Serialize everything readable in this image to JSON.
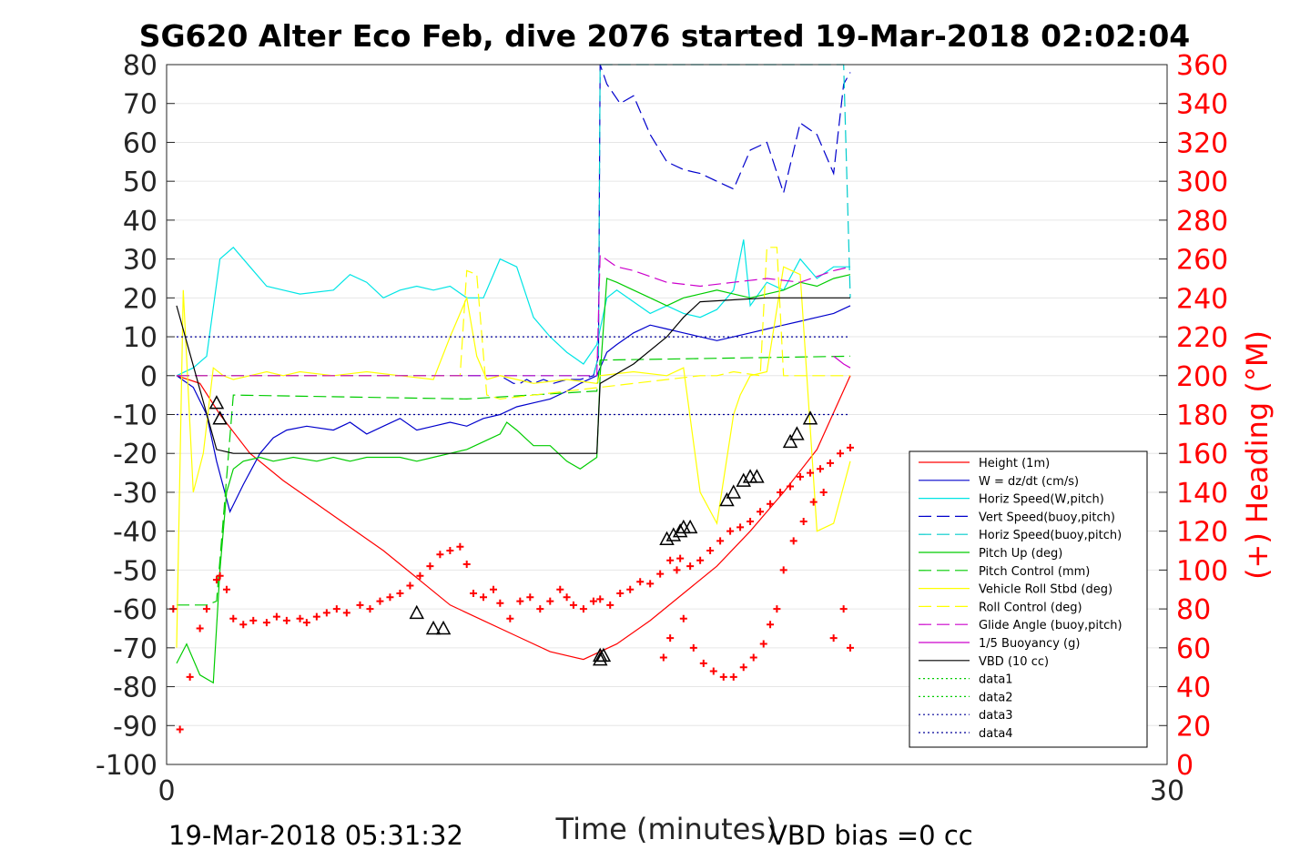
{
  "chart_data": {
    "type": "line",
    "title": "SG620 Alter Eco Feb, dive 2076 started 19-Mar-2018 02:02:04",
    "xlabel": "Time (minutes)",
    "ylabel_right": "(+) Heading (°M)",
    "xlim": [
      0,
      30
    ],
    "ylim_left": [
      -100,
      80
    ],
    "ylim_right": [
      0,
      360
    ],
    "x_ticks": [
      "0",
      "30"
    ],
    "y_ticks_left": [
      "80",
      "70",
      "60",
      "50",
      "40",
      "30",
      "20",
      "10",
      "0",
      "-10",
      "-20",
      "-30",
      "-40",
      "-50",
      "-60",
      "-70",
      "-80",
      "-90",
      "-100"
    ],
    "y_ticks_right": [
      "360",
      "340",
      "320",
      "300",
      "280",
      "260",
      "240",
      "220",
      "200",
      "180",
      "160",
      "140",
      "120",
      "100",
      "80",
      "60",
      "40",
      "20",
      "0"
    ],
    "grid": true,
    "legend_position": "bottom-right",
    "footer_left": "19-Mar-2018 05:31:32",
    "footer_right": "VBD bias =0 cc",
    "colors": {
      "heading": "#ff0000",
      "axis": "#262626",
      "grid": "#e6e6e6"
    },
    "series": [
      {
        "name": "Height (1m)",
        "color": "#ff0000",
        "style": "solid",
        "x": [
          0.3,
          1.0,
          1.6,
          2.5,
          3.5,
          4.5,
          5.5,
          6.5,
          7.5,
          8.5,
          9.5,
          10.5,
          11.5,
          12.5,
          13.5,
          14.5,
          15.5,
          16.5,
          17.5,
          18.5,
          19.5,
          20.5
        ],
        "y": [
          0,
          -2,
          -10,
          -20,
          -27,
          -33,
          -39,
          -45,
          -52,
          -59,
          -63,
          -67,
          -71,
          -73,
          -69,
          -63,
          -56,
          -49,
          -40,
          -30,
          -19,
          0
        ]
      },
      {
        "name": "W = dz/dt (cm/s)",
        "color": "#0000cc",
        "style": "solid",
        "x": [
          0.3,
          0.8,
          1.2,
          1.5,
          1.9,
          2.3,
          2.8,
          3.2,
          3.6,
          4.2,
          5.0,
          5.5,
          6.0,
          6.5,
          7.0,
          7.5,
          8.0,
          8.5,
          9.0,
          9.5,
          10.0,
          10.5,
          11.0,
          11.5,
          12.0,
          12.4,
          12.9,
          13.2,
          13.5,
          14.0,
          14.5,
          15.0,
          15.5,
          16.0,
          16.5,
          17.0,
          17.5,
          18.0,
          18.5,
          19.0,
          19.5,
          20.0,
          20.5
        ],
        "y": [
          0,
          -3,
          -10,
          -22,
          -35,
          -28,
          -20,
          -16,
          -14,
          -13,
          -14,
          -12,
          -15,
          -13,
          -11,
          -14,
          -13,
          -12,
          -13,
          -11,
          -10,
          -8,
          -7,
          -6,
          -4,
          -2,
          0,
          6,
          8,
          11,
          13,
          12,
          11,
          10,
          9,
          10,
          11,
          12,
          13,
          14,
          15,
          16,
          18
        ]
      },
      {
        "name": "Horiz Speed(W,pitch)",
        "color": "#00e5e5",
        "style": "solid",
        "x": [
          0.3,
          0.8,
          1.2,
          1.6,
          2.0,
          2.5,
          3.0,
          3.5,
          4.0,
          5.0,
          5.5,
          6.0,
          6.5,
          7.0,
          7.5,
          8.0,
          8.5,
          9.0,
          9.5,
          10.0,
          10.5,
          11.0,
          11.5,
          12.0,
          12.5,
          12.9,
          13.2,
          13.5,
          14.0,
          14.5,
          15.0,
          15.5,
          16.0,
          16.5,
          17.0,
          17.3,
          17.5,
          18.0,
          18.5,
          19.0,
          19.5,
          20.0,
          20.5
        ],
        "y": [
          0,
          2,
          5,
          30,
          33,
          28,
          23,
          22,
          21,
          22,
          26,
          24,
          20,
          22,
          23,
          22,
          23,
          20,
          20,
          30,
          28,
          15,
          10,
          6,
          3,
          8,
          20,
          22,
          19,
          16,
          18,
          16,
          15,
          17,
          22,
          35,
          18,
          24,
          22,
          30,
          25,
          28,
          28
        ]
      },
      {
        "name": "Vert Speed(buoy,pitch)",
        "color": "#0000cc",
        "style": "dashed",
        "x": [
          0.3,
          10.0,
          10.2,
          10.4,
          10.6,
          10.8,
          11.0,
          11.3,
          11.6,
          12.0,
          12.4,
          12.8,
          12.95,
          13.0,
          13.2,
          13.6,
          14.0,
          14.5,
          15.0,
          15.5,
          16.0,
          16.5,
          17.0,
          17.5,
          18.0,
          18.5,
          19.0,
          19.5,
          20.0,
          20.3,
          20.5
        ],
        "y": [
          0,
          0,
          -1,
          -2,
          -2,
          -1,
          -2,
          -1,
          -2,
          -1,
          -1,
          0,
          5,
          80,
          75,
          70,
          72,
          62,
          55,
          53,
          52,
          50,
          48,
          58,
          60,
          47,
          65,
          62,
          52,
          75,
          78
        ]
      },
      {
        "name": "Horiz Speed(buoy,pitch)",
        "color": "#00cccc",
        "style": "dashed",
        "x": [
          0.3,
          12.8,
          12.95,
          13.0,
          13.1,
          19.9,
          20.0,
          20.3,
          20.5
        ],
        "y": [
          0,
          0,
          5,
          80,
          80,
          80,
          80,
          80,
          20
        ]
      },
      {
        "name": "Pitch Up (deg)",
        "color": "#00cc00",
        "style": "solid",
        "x": [
          0.3,
          0.6,
          1.0,
          1.4,
          1.6,
          1.8,
          2.0,
          2.3,
          2.8,
          3.2,
          3.8,
          4.5,
          5.0,
          5.5,
          6.0,
          6.5,
          7.0,
          7.5,
          8.0,
          8.5,
          9.0,
          9.5,
          10.0,
          10.2,
          10.5,
          11.0,
          11.5,
          12.0,
          12.4,
          12.9,
          13.0,
          13.2,
          13.5,
          14.0,
          14.5,
          15.0,
          15.5,
          16.0,
          16.5,
          17.0,
          17.5,
          18.0,
          18.5,
          19.0,
          19.5,
          20.0,
          20.5
        ],
        "y": [
          -74,
          -69,
          -77,
          -79,
          -50,
          -30,
          -24,
          -22,
          -21,
          -22,
          -21,
          -22,
          -21,
          -22,
          -21,
          -21,
          -21,
          -22,
          -21,
          -20,
          -19,
          -17,
          -15,
          -12,
          -14,
          -18,
          -18,
          -22,
          -24,
          -21,
          0,
          25,
          24,
          22,
          20,
          18,
          20,
          21,
          22,
          21,
          20,
          21,
          22,
          24,
          23,
          25,
          26
        ]
      },
      {
        "name": "Pitch Control (mm)",
        "color": "#00cc00",
        "style": "dashed",
        "x": [
          0.3,
          1.0,
          1.2,
          1.5,
          2.0,
          9.0,
          12.8,
          12.9,
          13.0,
          20.5
        ],
        "y": [
          -59,
          -59,
          -59,
          -58,
          -5,
          -6,
          -4,
          -4,
          4,
          5
        ]
      },
      {
        "name": "Vehicle Roll Stbd (deg)",
        "color": "#ffff00",
        "style": "solid",
        "x": [
          0.3,
          0.5,
          0.8,
          1.1,
          1.4,
          1.7,
          2.0,
          2.5,
          3.0,
          3.5,
          4.0,
          5.0,
          6.0,
          7.0,
          8.0,
          8.5,
          9.0,
          9.3,
          9.6,
          10.0,
          10.5,
          11.0,
          12.0,
          12.9,
          13.0,
          14.0,
          15.0,
          15.5,
          16.0,
          16.5,
          17.0,
          17.2,
          17.5,
          18.0,
          18.5,
          19.0,
          19.5,
          20.0,
          20.5
        ],
        "y": [
          -70,
          22,
          -30,
          -20,
          2,
          0,
          -1,
          0,
          1,
          0,
          1,
          0,
          1,
          0,
          -1,
          10,
          20,
          5,
          -1,
          0,
          -1,
          -2,
          -1,
          -2,
          0,
          1,
          0,
          2,
          -30,
          -38,
          -10,
          -5,
          0,
          1,
          28,
          26,
          -40,
          -38,
          -22
        ]
      },
      {
        "name": "Roll Control (deg)",
        "color": "#ffff00",
        "style": "dashed",
        "x": [
          0.3,
          8.8,
          9.0,
          9.3,
          9.6,
          10.0,
          16.0,
          16.5,
          17.0,
          17.8,
          18.0,
          18.3,
          18.5,
          19.0,
          20.5
        ],
        "y": [
          0,
          0,
          27,
          26,
          -5,
          -6,
          0,
          0,
          1,
          0,
          33,
          33,
          0,
          0,
          0
        ]
      },
      {
        "name": "Glide Angle (buoy,pitch)",
        "color": "#cc00cc",
        "style": "dashed",
        "x": [
          0.3,
          12.8,
          12.9,
          13.0,
          13.5,
          14.0,
          15.0,
          16.0,
          17.0,
          18.0,
          19.0,
          20.0,
          20.5
        ],
        "y": [
          0,
          0,
          0,
          31,
          28,
          27,
          24,
          23,
          24,
          25,
          24,
          27,
          28
        ]
      },
      {
        "name": "1/5 Buoyancy (g)",
        "color": "#cc00cc",
        "style": "solid",
        "x": [
          20.0,
          20.3,
          20.5
        ],
        "y": [
          5,
          3,
          2
        ]
      },
      {
        "name": "VBD (10 cc)",
        "color": "#000000",
        "style": "solid",
        "x": [
          0.3,
          1.5,
          2.0,
          3.0,
          6.0,
          9.0,
          11.0,
          12.5,
          12.9,
          13.0,
          14.0,
          15.0,
          15.5,
          16.0,
          18.0,
          20.5
        ],
        "y": [
          18,
          -19,
          -20,
          -20,
          -20,
          -20,
          -20,
          -20,
          -20,
          -2,
          3,
          10,
          15,
          19,
          20,
          20
        ]
      },
      {
        "name": "data1",
        "color": "#00cc00",
        "style": "dotted",
        "x": [],
        "y": []
      },
      {
        "name": "data2",
        "color": "#00cc00",
        "style": "dotted",
        "x": [],
        "y": []
      },
      {
        "name": "data3",
        "color": "#000099",
        "style": "dotted",
        "x": [
          0.3,
          20.5
        ],
        "y": [
          10,
          10
        ]
      },
      {
        "name": "data4",
        "color": "#000099",
        "style": "dotted",
        "x": [
          0.3,
          20.5
        ],
        "y": [
          -10,
          -10
        ]
      }
    ],
    "heading_points": {
      "color": "#ff0000",
      "x": [
        0.2,
        0.4,
        0.7,
        1.0,
        1.2,
        1.5,
        1.6,
        1.8,
        2.0,
        2.3,
        2.6,
        3.0,
        3.3,
        3.6,
        4.0,
        4.2,
        4.5,
        4.8,
        5.1,
        5.4,
        5.8,
        6.1,
        6.4,
        6.7,
        7.0,
        7.3,
        7.6,
        7.9,
        8.2,
        8.5,
        8.8,
        9.0,
        9.2,
        9.5,
        9.8,
        10.0,
        10.3,
        10.6,
        10.9,
        11.2,
        11.5,
        11.8,
        12.0,
        12.2,
        12.5,
        12.8,
        13.0,
        13.3,
        13.6,
        13.9,
        14.2,
        14.5,
        14.8,
        15.1,
        15.4,
        15.7,
        16.0,
        16.3,
        16.6,
        16.9,
        17.2,
        17.5,
        17.8,
        18.1,
        18.4,
        18.7,
        19.0,
        19.3,
        19.6,
        19.9,
        20.2,
        20.5,
        14.9,
        15.1,
        15.3,
        15.5,
        15.8,
        16.1,
        16.4,
        16.7,
        17.0,
        17.3,
        17.6,
        17.9,
        18.1,
        18.3,
        18.5,
        18.8,
        19.1,
        19.4,
        19.7,
        20.0,
        20.3,
        20.5
      ],
      "y": [
        80,
        18,
        45,
        70,
        80,
        95,
        97,
        90,
        75,
        72,
        74,
        73,
        76,
        74,
        75,
        73,
        76,
        78,
        80,
        78,
        82,
        80,
        84,
        86,
        88,
        92,
        97,
        102,
        108,
        110,
        112,
        103,
        88,
        86,
        90,
        83,
        75,
        84,
        86,
        80,
        84,
        90,
        86,
        82,
        80,
        84,
        85,
        82,
        88,
        90,
        94,
        93,
        98,
        105,
        106,
        102,
        105,
        110,
        115,
        120,
        122,
        125,
        130,
        134,
        140,
        143,
        148,
        150,
        152,
        155,
        160,
        163,
        55,
        65,
        100,
        75,
        60,
        52,
        48,
        45,
        45,
        50,
        55,
        62,
        72,
        80,
        100,
        115,
        125,
        135,
        140,
        65,
        80,
        60
      ]
    },
    "triangle_markers": {
      "color": "#000000",
      "x": [
        1.5,
        1.6,
        7.5,
        8.0,
        8.3,
        13.0,
        13.0,
        13.1,
        15.0,
        15.2,
        15.4,
        15.5,
        15.7,
        16.8,
        17.0,
        17.3,
        17.5,
        17.7,
        18.7,
        18.9,
        19.3
      ],
      "y": [
        -7,
        -11,
        -61,
        -65,
        -65,
        -72,
        -73,
        -72,
        -42,
        -41,
        -40,
        -39,
        -39,
        -32,
        -30,
        -27,
        -26,
        -26,
        -17,
        -15,
        -11
      ]
    }
  }
}
